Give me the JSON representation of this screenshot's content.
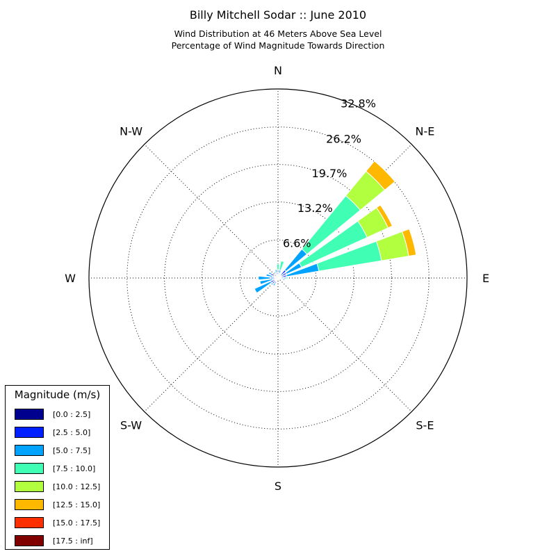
{
  "title": "Billy Mitchell Sodar :: June 2010",
  "subtitle_line1": "Wind Distribution at 46 Meters Above Sea Level",
  "subtitle_line2": "Percentage of Wind Magnitude Towards Direction",
  "chart_data": {
    "type": "windrose",
    "title": "Billy Mitchell Sodar :: June 2010",
    "directions": [
      "N",
      "N-E",
      "E",
      "S-E",
      "S",
      "S-W",
      "W",
      "N-W"
    ],
    "radial_ticks": [
      "6.6%",
      "13.2%",
      "19.7%",
      "26.2%",
      "32.8%"
    ],
    "radial_values": [
      6.6,
      13.2,
      19.7,
      26.2,
      32.8
    ],
    "rmax": 32.8,
    "grid": true,
    "legend_title": "Magnitude (m/s)",
    "legend_position": "bottom-left",
    "bins": [
      {
        "label": "[0.0 : 2.5]",
        "color": "#00008f"
      },
      {
        "label": "[2.5 : 5.0]",
        "color": "#0020ff"
      },
      {
        "label": "[5.0 : 7.5]",
        "color": "#00a4ff"
      },
      {
        "label": "[7.5 : 10.0]",
        "color": "#40ffb4"
      },
      {
        "label": "[10.0 : 12.5]",
        "color": "#b2ff40"
      },
      {
        "label": "[12.5 : 15.0]",
        "color": "#ffb800"
      },
      {
        "label": "[15.0 : 17.5]",
        "color": "#ff3000"
      },
      {
        "label": "[17.5 : inf]",
        "color": "#800000"
      }
    ],
    "sectors": [
      {
        "direction_deg": 0,
        "cumulative": [
          0.4,
          0.9,
          1.4,
          2.4
        ]
      },
      {
        "direction_deg": 15,
        "cumulative": [
          0.2,
          0.8,
          1.4,
          3.0
        ]
      },
      {
        "direction_deg": 45,
        "cumulative": [
          0.6,
          1.8,
          6.5,
          18.5,
          24.0,
          26.3
        ]
      },
      {
        "direction_deg": 60,
        "cumulative": [
          0.5,
          1.6,
          4.5,
          17.0,
          21.0,
          21.8
        ]
      },
      {
        "direction_deg": 75,
        "cumulative": [
          0.5,
          1.5,
          7.2,
          18.2,
          23.0,
          24.3
        ]
      },
      {
        "direction_deg": 90,
        "cumulative": [
          0.4,
          1.0,
          1.4,
          1.7
        ]
      },
      {
        "direction_deg": 105,
        "cumulative": [
          0.3,
          0.8,
          1.2
        ]
      },
      {
        "direction_deg": 165,
        "cumulative": [
          0.2,
          0.3
        ]
      },
      {
        "direction_deg": 210,
        "cumulative": [
          0.3,
          1.1,
          1.5
        ]
      },
      {
        "direction_deg": 225,
        "cumulative": [
          0.4,
          1.3,
          1.6
        ]
      },
      {
        "direction_deg": 240,
        "cumulative": [
          0.5,
          1.4,
          4.5
        ]
      },
      {
        "direction_deg": 255,
        "cumulative": [
          0.3,
          1.0,
          3.2
        ]
      },
      {
        "direction_deg": 270,
        "cumulative": [
          0.4,
          1.3,
          3.4
        ]
      },
      {
        "direction_deg": 285,
        "cumulative": [
          0.3,
          1.0,
          2.1
        ]
      },
      {
        "direction_deg": 300,
        "cumulative": [
          0.3,
          1.4,
          1.8
        ]
      },
      {
        "direction_deg": 330,
        "cumulative": [
          0.2,
          0.9,
          1.2
        ]
      },
      {
        "direction_deg": 345,
        "cumulative": [
          0.3,
          1.0,
          1.5
        ]
      }
    ]
  }
}
